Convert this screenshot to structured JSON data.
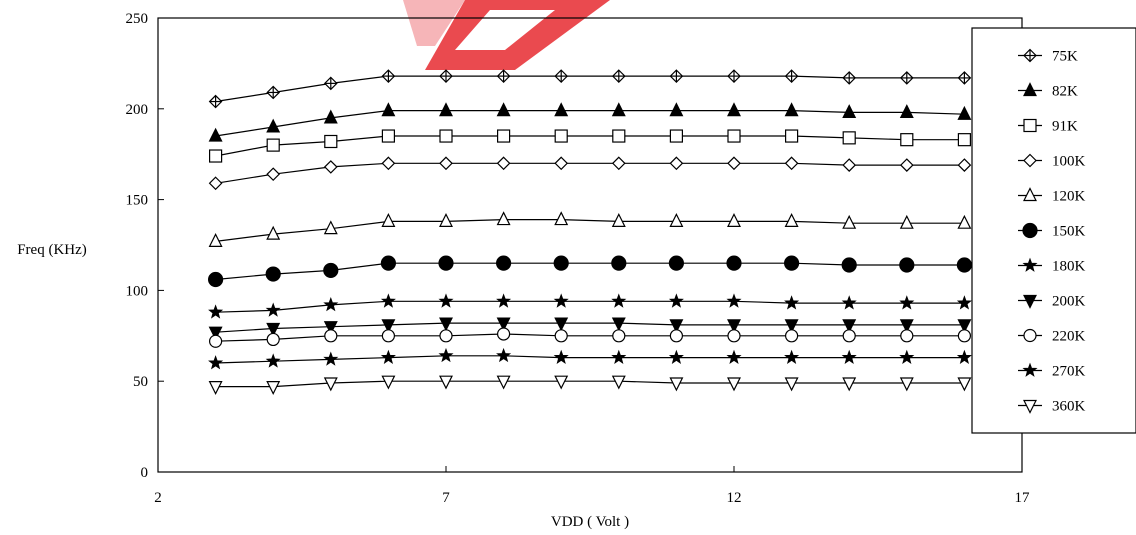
{
  "chart_data": {
    "type": "line",
    "title": "",
    "xlabel": "VDD ( Volt )",
    "ylabel": "Freq (KHz)",
    "xlim": [
      2,
      17
    ],
    "ylim": [
      0,
      250
    ],
    "x_ticks": [
      "2",
      "7",
      "12",
      "17"
    ],
    "y_ticks": [
      "0",
      "50",
      "100",
      "150",
      "200",
      "250"
    ],
    "grid": false,
    "legend_position": "right",
    "x": [
      3,
      4,
      5,
      6,
      7,
      8,
      9,
      10,
      11,
      12,
      13,
      14,
      15,
      16
    ],
    "series": [
      {
        "name": "75K",
        "marker": "diamond-plus",
        "values": [
          204,
          209,
          214,
          218,
          218,
          218,
          218,
          218,
          218,
          218,
          218,
          217,
          217,
          217
        ]
      },
      {
        "name": "82K",
        "marker": "triangle-filled",
        "values": [
          185,
          190,
          195,
          199,
          199,
          199,
          199,
          199,
          199,
          199,
          199,
          198,
          198,
          197
        ]
      },
      {
        "name": "91K",
        "marker": "square-open",
        "values": [
          174,
          180,
          182,
          185,
          185,
          185,
          185,
          185,
          185,
          185,
          185,
          184,
          183,
          183
        ]
      },
      {
        "name": "100K",
        "marker": "diamond-open",
        "values": [
          159,
          164,
          168,
          170,
          170,
          170,
          170,
          170,
          170,
          170,
          170,
          169,
          169,
          169
        ]
      },
      {
        "name": "120K",
        "marker": "triangle-open",
        "values": [
          127,
          131,
          134,
          138,
          138,
          139,
          139,
          138,
          138,
          138,
          138,
          137,
          137,
          137
        ]
      },
      {
        "name": "150K",
        "marker": "circle-filled",
        "values": [
          106,
          109,
          111,
          115,
          115,
          115,
          115,
          115,
          115,
          115,
          115,
          114,
          114,
          114
        ]
      },
      {
        "name": "180K",
        "marker": "star",
        "values": [
          88,
          89,
          92,
          94,
          94,
          94,
          94,
          94,
          94,
          94,
          93,
          93,
          93,
          93
        ]
      },
      {
        "name": "200K",
        "marker": "tri-down-filled",
        "values": [
          77,
          79,
          80,
          81,
          82,
          82,
          82,
          82,
          81,
          81,
          81,
          81,
          81,
          81
        ]
      },
      {
        "name": "220K",
        "marker": "circle-open",
        "values": [
          72,
          73,
          75,
          75,
          75,
          76,
          75,
          75,
          75,
          75,
          75,
          75,
          75,
          75
        ]
      },
      {
        "name": "270K",
        "marker": "star",
        "values": [
          60,
          61,
          62,
          63,
          64,
          64,
          63,
          63,
          63,
          63,
          63,
          63,
          63,
          63
        ]
      },
      {
        "name": "360K",
        "marker": "tri-down-open",
        "values": [
          47,
          47,
          49,
          50,
          50,
          50,
          50,
          50,
          49,
          49,
          49,
          49,
          49,
          49
        ]
      }
    ]
  },
  "colors": {
    "axis": "#000000",
    "series": "#000000",
    "watermark": "#e8363c"
  }
}
